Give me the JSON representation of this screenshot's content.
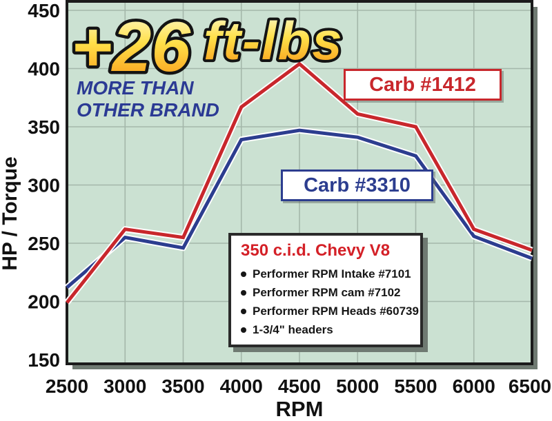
{
  "chart_data": {
    "type": "line",
    "x": [
      2500,
      3000,
      3500,
      4000,
      4500,
      5000,
      5500,
      6000,
      6500
    ],
    "xlabel": "RPM",
    "ylabel": "HP / Torque",
    "ylim": [
      150,
      450
    ],
    "ytick_step": 50,
    "grid": true,
    "plot_bg": "#cbe1d2",
    "grid_color": "#a4b7aa",
    "border_color": "#1b1b1b",
    "tick_color": "#111111",
    "series": [
      {
        "name": "Carb #1412",
        "color": "#c8272c",
        "values": [
          199,
          262,
          255,
          367,
          404,
          361,
          350,
          262,
          244
        ]
      },
      {
        "name": "Carb #3310",
        "color": "#2c3d8f",
        "values": [
          212,
          255,
          246,
          339,
          347,
          341,
          325,
          256,
          237
        ]
      }
    ],
    "legend_position": "inline-labels-on-plot"
  },
  "headline": {
    "big": "+26",
    "small": "ft-lbs",
    "sub_line1": "MORE THAN",
    "sub_line2": "OTHER BRAND",
    "sub_color": "#2b3a94",
    "outline_color": "#141414",
    "gradient": [
      "#fffbd6",
      "#ffe049",
      "#fbb32a",
      "#f2901a"
    ]
  },
  "info_box": {
    "title": "350 c.i.d. Chevy V8",
    "title_color": "#d42027",
    "bullets": [
      "Performer RPM Intake #7101",
      "Performer RPM cam #7102",
      "Performer RPM Heads #60739",
      "1-3/4\" headers"
    ]
  }
}
